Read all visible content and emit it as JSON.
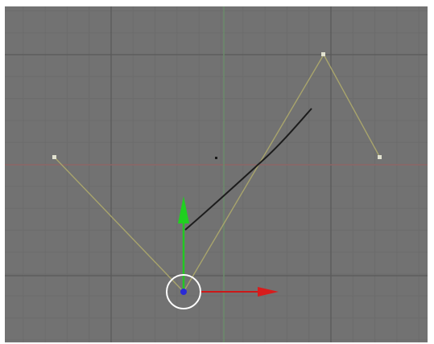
{
  "viewport": {
    "background_color": "#727272",
    "minor_grid_color": "#6c6c6c",
    "major_grid_color": "#5c5c5c",
    "x_axis_color": "#8a6a6a",
    "y_axis_color": "#6b8a6b",
    "handle_line_color": "#a3a06a",
    "curve_color": "#1c1c1c"
  },
  "gizmo": {
    "x_axis_color": "#d21a1a",
    "y_axis_color": "#1ccc1c",
    "center_color": "#2a2adc",
    "ring_color": "#ffffff"
  }
}
